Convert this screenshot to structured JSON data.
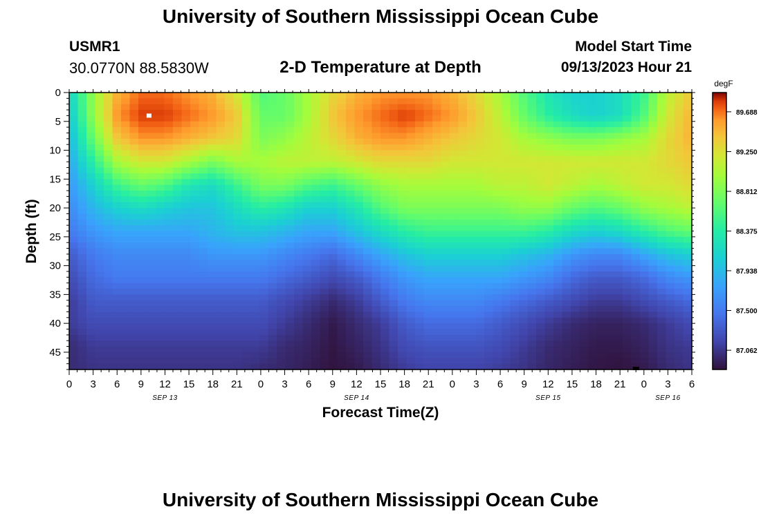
{
  "header": {
    "title": "University of Southern Mississippi Ocean Cube",
    "station_id": "USMR1",
    "coords": "30.0770N  88.5830W",
    "subtitle": "2-D Temperature at Depth",
    "model_label": "Model Start Time",
    "model_start": "09/13/2023 Hour 21"
  },
  "footer": {
    "title": "University of Southern Mississippi Ocean Cube"
  },
  "chart_data": {
    "type": "heatmap",
    "title": "2-D Temperature at Depth",
    "xlabel": "Forecast Time(Z)",
    "ylabel": "Depth (ft)",
    "x_tick_labels": [
      "0",
      "3",
      "6",
      "9",
      "12",
      "15",
      "18",
      "21",
      "0",
      "3",
      "6",
      "9",
      "12",
      "15",
      "18",
      "21",
      "0",
      "3",
      "6",
      "9",
      "12",
      "15",
      "18",
      "21",
      "0",
      "3",
      "6"
    ],
    "x_hours_range": [
      0,
      78
    ],
    "date_labels": [
      {
        "label": "SEP 13",
        "hour": 12
      },
      {
        "label": "SEP 14",
        "hour": 36
      },
      {
        "label": "SEP 15",
        "hour": 60
      },
      {
        "label": "SEP 16",
        "hour": 75
      }
    ],
    "y_ticks": [
      0,
      5,
      10,
      15,
      20,
      25,
      30,
      35,
      40,
      45
    ],
    "y_range": [
      0,
      48
    ],
    "colorbar": {
      "unit": "degF",
      "ticks": [
        "89.688",
        "89.250",
        "88.812",
        "88.375",
        "87.938",
        "87.500",
        "87.062"
      ],
      "range": [
        86.85,
        89.9
      ]
    },
    "max_marker": {
      "hour": 10,
      "depth": 4
    },
    "min_marker": {
      "hour": 71,
      "depth": 48
    },
    "field": {
      "depths": [
        0,
        4,
        8,
        12,
        16,
        20,
        24,
        28,
        32,
        36,
        40,
        44,
        48
      ],
      "hours": [
        0,
        3,
        6,
        9,
        12,
        15,
        18,
        21,
        24,
        27,
        30,
        33,
        36,
        39,
        42,
        45,
        48,
        51,
        54,
        57,
        60,
        63,
        66,
        69,
        72,
        75,
        78
      ],
      "values": [
        [
          88.1,
          88.9,
          89.5,
          89.7,
          89.7,
          89.6,
          89.5,
          89.2,
          88.6,
          88.7,
          89.0,
          89.3,
          89.5,
          89.6,
          89.6,
          89.6,
          89.5,
          89.3,
          89.0,
          88.6,
          88.3,
          88.1,
          88.1,
          88.2,
          88.5,
          89.1,
          89.4
        ],
        [
          88.0,
          88.9,
          89.6,
          89.8,
          89.8,
          89.7,
          89.6,
          89.4,
          88.7,
          88.7,
          89.0,
          89.4,
          89.6,
          89.7,
          89.8,
          89.7,
          89.6,
          89.4,
          89.1,
          88.7,
          88.4,
          88.2,
          88.1,
          88.2,
          88.6,
          89.2,
          89.5
        ],
        [
          87.9,
          88.7,
          89.4,
          89.6,
          89.6,
          89.5,
          89.4,
          89.3,
          88.8,
          88.9,
          89.1,
          89.3,
          89.5,
          89.6,
          89.6,
          89.5,
          89.4,
          89.3,
          89.2,
          89.0,
          88.9,
          88.8,
          88.8,
          88.9,
          89.0,
          89.3,
          89.5
        ],
        [
          87.8,
          88.4,
          89.0,
          89.2,
          89.2,
          89.0,
          88.8,
          89.0,
          89.0,
          89.1,
          89.1,
          89.1,
          89.2,
          89.3,
          89.3,
          89.3,
          89.2,
          89.2,
          89.2,
          89.2,
          89.2,
          89.2,
          89.2,
          89.2,
          89.2,
          89.3,
          89.4
        ],
        [
          87.7,
          88.1,
          88.5,
          88.7,
          88.6,
          88.3,
          88.2,
          88.5,
          88.8,
          88.8,
          88.6,
          88.5,
          88.7,
          88.9,
          89.0,
          89.0,
          89.0,
          89.0,
          89.1,
          89.1,
          89.2,
          89.1,
          89.0,
          89.1,
          89.2,
          89.2,
          89.3
        ],
        [
          87.6,
          87.9,
          88.1,
          88.2,
          88.1,
          88.0,
          88.0,
          88.2,
          88.4,
          88.3,
          88.1,
          88.1,
          88.3,
          88.6,
          88.8,
          88.8,
          88.8,
          88.8,
          88.8,
          88.9,
          88.9,
          88.7,
          88.6,
          88.7,
          88.9,
          89.0,
          89.1
        ],
        [
          87.5,
          87.7,
          87.8,
          87.8,
          87.8,
          87.8,
          87.9,
          88.0,
          88.0,
          87.9,
          87.8,
          87.8,
          88.0,
          88.2,
          88.4,
          88.5,
          88.5,
          88.5,
          88.5,
          88.5,
          88.4,
          88.2,
          88.1,
          88.2,
          88.4,
          88.6,
          88.7
        ],
        [
          87.3,
          87.5,
          87.6,
          87.6,
          87.6,
          87.6,
          87.7,
          87.7,
          87.7,
          87.6,
          87.5,
          87.4,
          87.6,
          87.8,
          88.0,
          88.1,
          88.1,
          88.1,
          88.1,
          88.0,
          87.9,
          87.7,
          87.6,
          87.6,
          87.8,
          88.0,
          88.1
        ],
        [
          87.2,
          87.4,
          87.5,
          87.5,
          87.5,
          87.5,
          87.5,
          87.5,
          87.5,
          87.4,
          87.3,
          87.2,
          87.3,
          87.5,
          87.7,
          87.8,
          87.8,
          87.8,
          87.8,
          87.7,
          87.6,
          87.4,
          87.3,
          87.3,
          87.4,
          87.6,
          87.7
        ],
        [
          87.1,
          87.3,
          87.3,
          87.3,
          87.3,
          87.3,
          87.3,
          87.3,
          87.3,
          87.2,
          87.1,
          87.0,
          87.1,
          87.3,
          87.5,
          87.6,
          87.6,
          87.6,
          87.5,
          87.4,
          87.3,
          87.2,
          87.1,
          87.1,
          87.2,
          87.3,
          87.4
        ],
        [
          87.1,
          87.2,
          87.2,
          87.2,
          87.2,
          87.2,
          87.2,
          87.2,
          87.2,
          87.1,
          87.0,
          86.9,
          87.0,
          87.1,
          87.3,
          87.4,
          87.4,
          87.4,
          87.3,
          87.2,
          87.1,
          87.0,
          86.95,
          86.95,
          87.0,
          87.1,
          87.2
        ],
        [
          87.0,
          87.1,
          87.1,
          87.1,
          87.1,
          87.1,
          87.1,
          87.1,
          87.1,
          87.0,
          86.95,
          86.88,
          86.95,
          87.05,
          87.2,
          87.25,
          87.25,
          87.25,
          87.2,
          87.1,
          87.0,
          86.95,
          86.9,
          86.9,
          86.95,
          87.05,
          87.1
        ],
        [
          87.0,
          87.05,
          87.05,
          87.05,
          87.05,
          87.05,
          87.05,
          87.05,
          87.0,
          86.97,
          86.92,
          86.86,
          86.9,
          87.0,
          87.1,
          87.15,
          87.15,
          87.15,
          87.1,
          87.05,
          86.97,
          86.92,
          86.88,
          86.86,
          86.9,
          87.0,
          87.05
        ]
      ]
    }
  }
}
